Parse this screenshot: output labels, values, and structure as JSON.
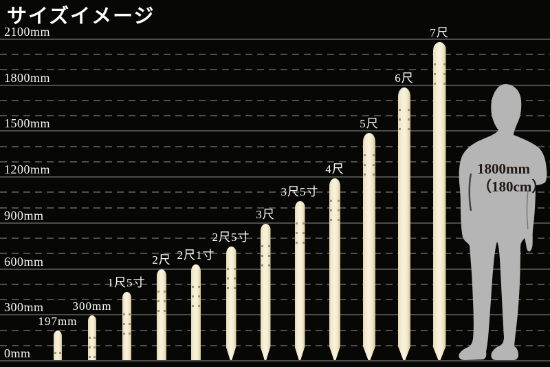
{
  "title": "サイズイメージ",
  "colors": {
    "background": "#070706",
    "grid_solid": "#4c4c48",
    "grid_dashed": "#4f4f4b",
    "text": "#ffffff",
    "stake_light": "#f9f3de",
    "stake_dark": "#cdbd92",
    "silhouette": "#b5b5b5",
    "silhouette_text": "#201913"
  },
  "y_axis": {
    "unit": "mm",
    "tick_values_mm": [
      0,
      300,
      600,
      900,
      1200,
      1500,
      1800,
      2100
    ],
    "tick_labels": [
      "0mm",
      "300mm",
      "600mm",
      "900mm",
      "1200mm",
      "1500mm",
      "1800mm",
      "2100mm"
    ],
    "minor_step_mm": 100
  },
  "chart_data": {
    "type": "bar",
    "title": "サイズイメージ",
    "ylabel": "mm",
    "ylim": [
      0,
      2200
    ],
    "grid": "major solid every 300mm, minor dashed every 100mm, legend none",
    "categories": [
      "197mm",
      "300mm",
      "1尺5寸",
      "2尺",
      "2尺1寸",
      "2尺5寸",
      "3尺",
      "3尺5寸",
      "4尺",
      "5尺",
      "6尺",
      "7尺"
    ],
    "values": [
      197,
      300,
      455,
      606,
      636,
      758,
      909,
      1061,
      1212,
      1515,
      1818,
      2121
    ],
    "unit": "mm",
    "bar_shape": "wooden stake, rounded top",
    "pointed_tip": [
      false,
      false,
      false,
      false,
      false,
      true,
      true,
      true,
      true,
      true,
      true,
      true
    ],
    "reference_figure_height_mm": 1800
  },
  "reference_figure": {
    "label_line1": "1800mm",
    "label_line2": "（180cm）",
    "height_mm": 1800
  }
}
